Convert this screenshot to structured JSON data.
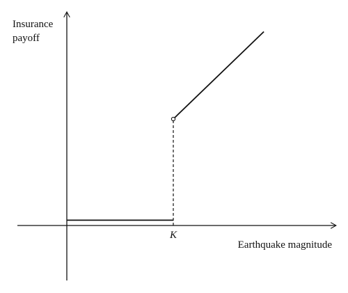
{
  "chart_data": {
    "type": "line",
    "title": "",
    "ylabel_lines": [
      "Insurance",
      "payoff"
    ],
    "xlabel": "Earthquake magnitude",
    "x_tick_labels": [
      "K"
    ],
    "threshold_label": "K",
    "segments": [
      {
        "name": "",
        "style": "solid",
        "points": [
          [
            0,
            0.05
          ],
          [
            1.0,
            0.05
          ]
        ]
      },
      {
        "name": "",
        "style": "dashed",
        "points": [
          [
            1.0,
            0.0
          ],
          [
            1.0,
            1.0
          ]
        ]
      },
      {
        "name": "",
        "style": "solid",
        "points": [
          [
            1.0,
            1.0
          ],
          [
            1.85,
            1.82
          ]
        ]
      }
    ],
    "open_point": [
      1.0,
      1.0
    ],
    "grid": false,
    "legend": "none"
  }
}
